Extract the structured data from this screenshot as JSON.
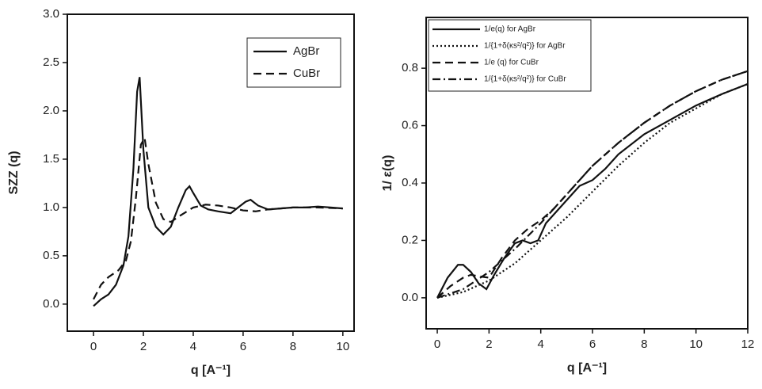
{
  "chart_data": [
    {
      "type": "line",
      "ylabel": "SZZ (q)",
      "xlabel": "q [A⁻¹]",
      "xlim": [
        -1.05,
        10.45
      ],
      "ylim": [
        -0.28,
        3.0
      ],
      "xticks": [
        0,
        2,
        4,
        6,
        8,
        10
      ],
      "yticks": [
        {
          "value": 0,
          "label": "0.0"
        },
        0.5,
        {
          "value": 1,
          "label": "1.0"
        },
        1.5,
        {
          "value": 2,
          "label": "2.0"
        },
        2.5,
        {
          "value": 3,
          "label": "3.0"
        }
      ],
      "legend": "upper right",
      "series": [
        {
          "name": "AgBr",
          "color": "#111111",
          "dash": "solid",
          "x": [
            0,
            0.3,
            0.6,
            0.9,
            1.2,
            1.4,
            1.6,
            1.75,
            1.85,
            2.0,
            2.2,
            2.5,
            2.8,
            3.1,
            3.4,
            3.7,
            3.85,
            4.0,
            4.3,
            4.6,
            5,
            5.5,
            5.8,
            6.1,
            6.3,
            6.6,
            7,
            7.5,
            8,
            8.5,
            9,
            9.5,
            10
          ],
          "values": [
            -0.02,
            0.05,
            0.1,
            0.2,
            0.4,
            0.7,
            1.4,
            2.2,
            2.35,
            1.6,
            1.0,
            0.8,
            0.72,
            0.8,
            1.0,
            1.18,
            1.22,
            1.15,
            1.02,
            0.98,
            0.96,
            0.94,
            1.0,
            1.06,
            1.08,
            1.02,
            0.98,
            0.99,
            1.0,
            1.0,
            1.01,
            1.0,
            0.99
          ]
        },
        {
          "name": "CuBr",
          "color": "#111111",
          "dash": "dashed",
          "x": [
            0,
            0.3,
            0.6,
            1.0,
            1.3,
            1.5,
            1.7,
            1.9,
            2.05,
            2.2,
            2.5,
            2.8,
            3.1,
            3.5,
            4,
            4.5,
            5,
            5.5,
            6,
            6.5,
            7,
            8,
            9,
            10
          ],
          "values": [
            0.05,
            0.2,
            0.28,
            0.35,
            0.45,
            0.65,
            1.1,
            1.65,
            1.72,
            1.45,
            1.05,
            0.88,
            0.85,
            0.92,
            1.0,
            1.03,
            1.02,
            1.0,
            0.97,
            0.96,
            0.98,
            1.0,
            1.0,
            0.99
          ]
        }
      ]
    },
    {
      "type": "line",
      "ylabel": "1/ ε(q)",
      "xlabel": "q [A⁻¹]",
      "xlim": [
        -0.43,
        12
      ],
      "ylim": [
        -0.108,
        0.977
      ],
      "xticks": [
        0,
        2,
        4,
        6,
        8,
        10,
        12
      ],
      "yticks": [
        {
          "value": 0,
          "label": "0.0"
        },
        0.2,
        0.4,
        0.6,
        0.8
      ],
      "legend": "upper left",
      "series": [
        {
          "name": "1/e(q) for AgBr",
          "color": "#111111",
          "dash": "solid",
          "x": [
            0,
            0.4,
            0.8,
            1.0,
            1.3,
            1.6,
            1.9,
            2.2,
            2.6,
            3.0,
            3.3,
            3.6,
            3.9,
            4.2,
            4.6,
            5,
            5.5,
            6,
            6.5,
            7,
            8,
            9,
            10,
            11,
            12
          ],
          "values": [
            0,
            0.07,
            0.115,
            0.115,
            0.09,
            0.05,
            0.03,
            0.08,
            0.14,
            0.19,
            0.2,
            0.19,
            0.2,
            0.26,
            0.3,
            0.34,
            0.39,
            0.41,
            0.45,
            0.5,
            0.57,
            0.62,
            0.67,
            0.71,
            0.745
          ]
        },
        {
          "name": "1/{1+δ(κs²/q²)} for AgBr",
          "color": "#111111",
          "dash": "dotted",
          "x": [
            0,
            1,
            2,
            3,
            4,
            5,
            6,
            7,
            8,
            9,
            10,
            11,
            12
          ],
          "values": [
            0,
            0.02,
            0.06,
            0.12,
            0.2,
            0.28,
            0.37,
            0.46,
            0.54,
            0.61,
            0.66,
            0.71,
            0.745
          ]
        },
        {
          "name": "1/e (q) for CuBr",
          "color": "#111111",
          "dash": "dashed",
          "x": [
            0,
            0.5,
            1,
            1.3,
            1.6,
            2,
            2.5,
            3,
            3.5,
            4,
            4.5,
            5,
            6,
            7,
            8,
            9,
            10,
            11,
            12
          ],
          "values": [
            0,
            0.04,
            0.07,
            0.08,
            0.075,
            0.07,
            0.14,
            0.2,
            0.24,
            0.27,
            0.31,
            0.36,
            0.46,
            0.54,
            0.61,
            0.67,
            0.72,
            0.76,
            0.79
          ]
        },
        {
          "name": "1/{1+δ(κs²/q²)} for CuBr",
          "color": "#111111",
          "dash": "dashdot",
          "x": [
            0,
            1,
            2,
            3,
            4,
            5,
            6,
            7,
            8,
            9,
            10,
            11,
            12
          ],
          "values": [
            0,
            0.03,
            0.09,
            0.17,
            0.26,
            0.36,
            0.46,
            0.54,
            0.61,
            0.67,
            0.72,
            0.76,
            0.79
          ]
        }
      ]
    }
  ]
}
